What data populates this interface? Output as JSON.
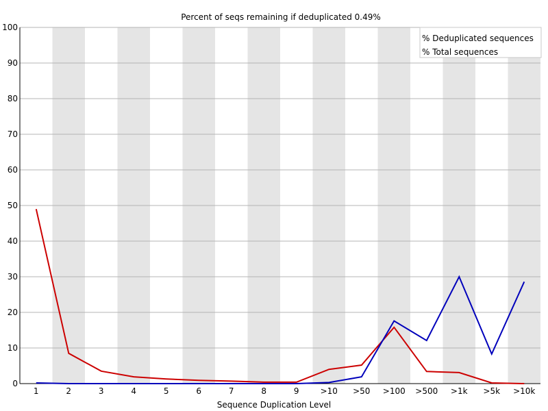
{
  "chart_data": {
    "type": "line",
    "title": "Percent of seqs remaining if deduplicated 0.49%",
    "xlabel": "Sequence Duplication Level",
    "ylabel": "",
    "categories": [
      "1",
      "2",
      "3",
      "4",
      "5",
      "6",
      "7",
      "8",
      "9",
      ">10",
      ">50",
      ">100",
      ">500",
      ">1k",
      ">5k",
      ">10k"
    ],
    "ylim": [
      0,
      100
    ],
    "yticks": [
      0,
      10,
      20,
      30,
      40,
      50,
      60,
      70,
      80,
      90,
      100
    ],
    "grid": true,
    "legend_position": "top-right",
    "series": [
      {
        "name": "% Deduplicated sequences",
        "color": "#cc0000",
        "values": [
          49.0,
          8.5,
          3.5,
          1.9,
          1.3,
          0.9,
          0.7,
          0.4,
          0.4,
          4.0,
          5.2,
          15.8,
          3.4,
          3.1,
          0.2,
          0.0
        ]
      },
      {
        "name": "% Total sequences",
        "color": "#0000bb",
        "values": [
          0.2,
          0.0,
          0.0,
          0.0,
          0.0,
          0.0,
          0.0,
          0.0,
          0.0,
          0.3,
          1.9,
          17.6,
          12.1,
          30.0,
          8.3,
          28.6
        ]
      }
    ],
    "colors": {
      "band_shade": "#e5e5e5",
      "gridline": "#b4b4b4",
      "axis": "#000000"
    }
  }
}
